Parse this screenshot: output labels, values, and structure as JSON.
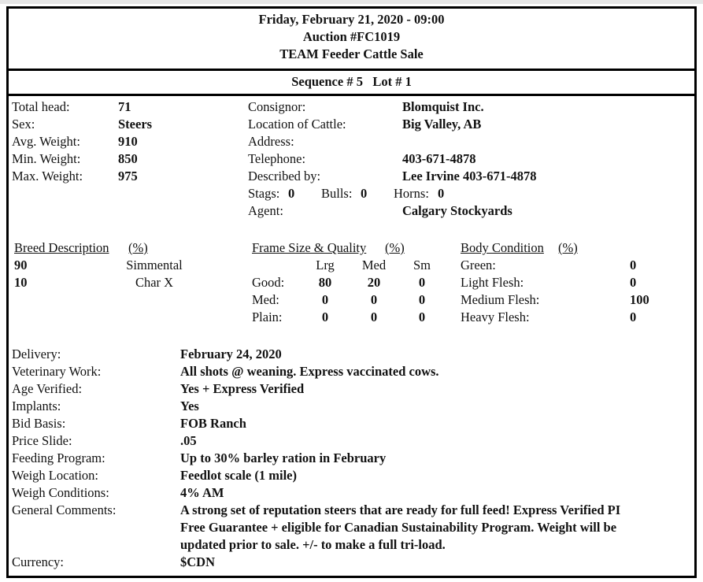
{
  "header": {
    "date": "Friday, February 21, 2020 - 09:00",
    "auction": "Auction #FC1019",
    "sale": "TEAM Feeder Cattle Sale"
  },
  "lot": {
    "sequence_label": "Sequence #",
    "sequence": "5",
    "lot_label": "Lot #",
    "lot": "1"
  },
  "summary": [
    {
      "label": "Total head:",
      "value": "71"
    },
    {
      "label": "Sex:",
      "value": "Steers"
    },
    {
      "label": "Avg. Weight:",
      "value": "910"
    },
    {
      "label": "Min. Weight:",
      "value": "850"
    },
    {
      "label": "Max. Weight:",
      "value": "975"
    }
  ],
  "consignor": [
    {
      "label": "Consignor:",
      "value": "Blomquist Inc."
    },
    {
      "label": "Location of Cattle:",
      "value": "Big Valley, AB"
    },
    {
      "label": "Address:",
      "value": ""
    },
    {
      "label": "Telephone:",
      "value": "403-671-4878"
    },
    {
      "label": "Described by:",
      "value": "Lee Irvine 403-671-4878"
    }
  ],
  "counts": {
    "stags_label": "Stags:",
    "stags": "0",
    "bulls_label": "Bulls:",
    "bulls": "0",
    "horns_label": "Horns:",
    "horns": "0"
  },
  "agent": {
    "label": "Agent:",
    "value": "Calgary Stockyards"
  },
  "breed": {
    "title": "Breed Description",
    "pct": "(%)",
    "rows": [
      {
        "pct": "90",
        "name": "Simmental"
      },
      {
        "pct": "10",
        "name": "Char X"
      }
    ]
  },
  "frame": {
    "title": "Frame Size & Quality",
    "pct": "(%)",
    "cols": [
      "Lrg",
      "Med",
      "Sm"
    ],
    "rows": [
      {
        "label": "Good:",
        "values": [
          "80",
          "20",
          "0"
        ]
      },
      {
        "label": "Med:",
        "values": [
          "0",
          "0",
          "0"
        ]
      },
      {
        "label": "Plain:",
        "values": [
          "0",
          "0",
          "0"
        ]
      }
    ]
  },
  "body": {
    "title": "Body Condition",
    "pct": "(%)",
    "rows": [
      {
        "label": "Green:",
        "value": "0"
      },
      {
        "label": "Light Flesh:",
        "value": "0"
      },
      {
        "label": "Medium Flesh:",
        "value": "100"
      },
      {
        "label": "Heavy Flesh:",
        "value": "0"
      }
    ]
  },
  "details": [
    {
      "label": "Delivery:",
      "value": "February 24, 2020"
    },
    {
      "label": "Veterinary Work:",
      "value": "All shots @ weaning. Express vaccinated cows."
    },
    {
      "label": "Age Verified:",
      "value": "Yes + Express Verified"
    },
    {
      "label": "Implants:",
      "value": "Yes"
    },
    {
      "label": "Bid Basis:",
      "value": "FOB Ranch"
    },
    {
      "label": "Price Slide:",
      "value": ".05"
    },
    {
      "label": "Feeding Program:",
      "value": "Up to 30% barley ration in February"
    },
    {
      "label": "Weigh Location:",
      "value": "Feedlot scale (1 mile)"
    },
    {
      "label": "Weigh Conditions:",
      "value": "4% AM"
    }
  ],
  "comments": {
    "label": "General Comments:",
    "lines": [
      "A strong set of reputation steers that are ready for full feed! Express Verified PI",
      "Free Guarantee + eligible for Canadian Sustainability Program. Weight will be",
      "updated prior to sale. +/- to make a full tri-load."
    ]
  },
  "currency": {
    "label": "Currency:",
    "value": "$CDN"
  }
}
